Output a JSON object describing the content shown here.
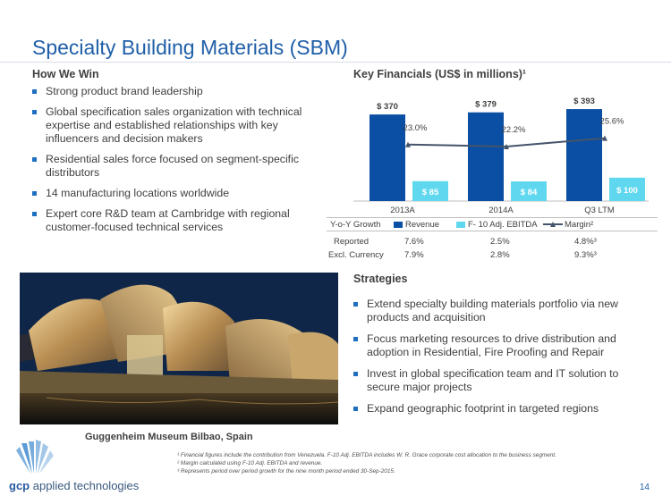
{
  "header": {
    "title": "Specialty Building Materials (SBM)"
  },
  "how_we_win": {
    "heading": "How We Win",
    "items": [
      "Strong product brand leadership",
      "Global specification sales organization with technical expertise and established relationships with key influencers and decision makers",
      "Residential sales force focused on segment-specific distributors",
      "14 manufacturing locations worldwide",
      "Expert core R&D team at Cambridge with regional customer-focused technical services"
    ]
  },
  "financials": {
    "heading": "Key Financials (US$ in millions)¹"
  },
  "chart_data": {
    "type": "bar",
    "categories": [
      "2013A",
      "2014A",
      "Q3 LTM"
    ],
    "series": [
      {
        "name": "Revenue",
        "values": [
          370,
          379,
          393
        ],
        "labels": [
          "$ 370",
          "$ 379",
          "$ 393"
        ],
        "color": "#0a4fa3"
      },
      {
        "name": "F- 10 Adj. EBITDA",
        "values": [
          85,
          84,
          100
        ],
        "labels": [
          "$ 85",
          "$ 84",
          "$ 100"
        ],
        "color": "#5fd8ef"
      },
      {
        "name": "Margin²",
        "type": "line",
        "values": [
          23.0,
          22.2,
          25.6
        ],
        "labels": [
          "23.0%",
          "22.2%",
          "25.6%"
        ],
        "color": "#44546a"
      }
    ],
    "ylim": [
      0,
      420
    ],
    "margin_ylim": [
      0,
      40
    ]
  },
  "growth_table": {
    "header": "Y-o-Y Growth",
    "rows": [
      {
        "label": "Reported",
        "values": [
          "7.6%",
          "2.5%",
          "4.8%³"
        ]
      },
      {
        "label": "Excl. Currency",
        "values": [
          "7.9%",
          "2.8%",
          "9.3%³"
        ]
      }
    ]
  },
  "strategies": {
    "heading": "Strategies",
    "items": [
      "Extend specialty building materials portfolio via new products and acquisition",
      "Focus marketing resources to drive distribution and adoption in Residential, Fire Proofing and Repair",
      "Invest in global specification team and IT solution to secure major projects",
      "Expand geographic footprint in targeted regions"
    ]
  },
  "photo": {
    "caption": "Guggenheim Museum Bilbao, Spain"
  },
  "footnotes": [
    "¹ Financial figures include the contribution from Venezuela. F-10 Adj. EBITDA includes W. R. Grace corporate cost allocation to the business segment.",
    "² Margin calculated using F-10 Adj. EBITDA and revenue.",
    "³ Represents period over period growth for the nine month period ended 30-Sep-2015."
  ],
  "logo": {
    "brand": "gcp",
    "name": " applied technologies"
  },
  "page_number": "14",
  "colors": {
    "title": "#1f5fa8",
    "revenue": "#0a4fa3",
    "ebitda": "#5fd8ef",
    "margin": "#44546a",
    "bullet": "#1f6fbf"
  }
}
